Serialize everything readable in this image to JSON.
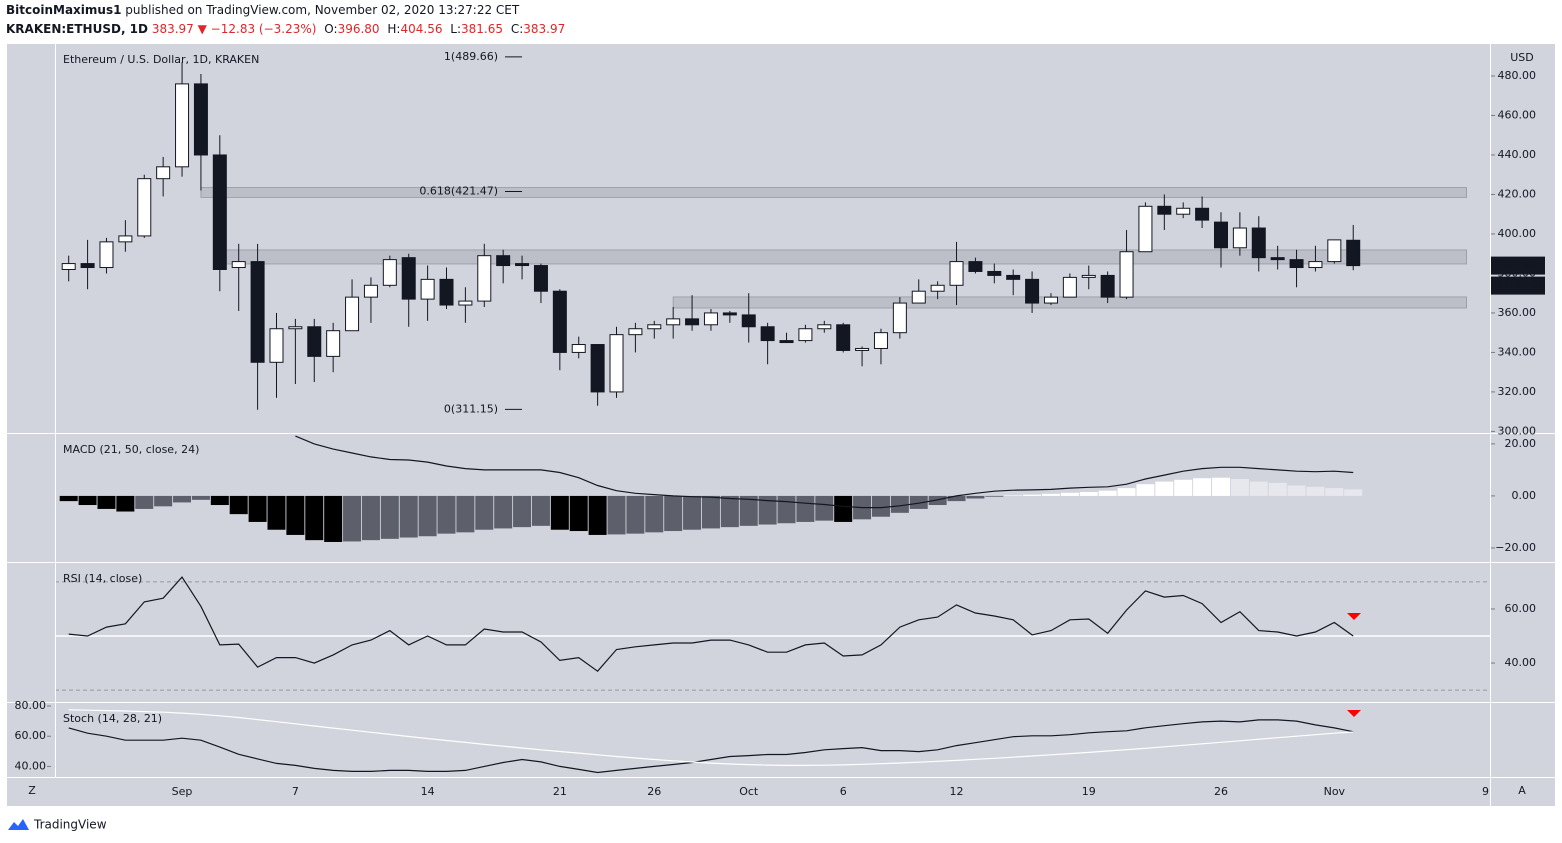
{
  "header": {
    "author": "BitcoinMaximus1",
    "published": "published on TradingView.com, November 02, 2020 13:27:22 CET",
    "symbol": "KRAKEN:ETHUSD, 1D",
    "last": "383.97",
    "change": "▼ −12.83 (−3.23%)",
    "ohlc": [
      {
        "key": "O:",
        "value": "396.80"
      },
      {
        "key": "H:",
        "value": "404.56"
      },
      {
        "key": "L:",
        "value": "381.65"
      },
      {
        "key": "C:",
        "value": "383.97"
      }
    ]
  },
  "footer": {
    "brand": "TradingView",
    "left_button": "Z",
    "right_button": "A"
  },
  "chart_data": [
    {
      "type": "candlestick",
      "title": "Ethereum / U.S. Dollar, 1D, KRAKEN",
      "currency": "USD",
      "categories": [
        null,
        null,
        null,
        null,
        null,
        null,
        "Sep",
        null,
        null,
        null,
        null,
        null,
        "7",
        null,
        null,
        null,
        null,
        null,
        null,
        "14",
        null,
        null,
        null,
        null,
        null,
        null,
        "21",
        null,
        null,
        null,
        null,
        "26",
        null,
        null,
        null,
        null,
        "Oct",
        null,
        null,
        null,
        null,
        "6",
        null,
        null,
        null,
        null,
        null,
        "12",
        null,
        null,
        null,
        null,
        null,
        null,
        "19",
        null,
        null,
        null,
        null,
        null,
        null,
        "26",
        null,
        null,
        null,
        null,
        null,
        "Nov",
        null,
        null,
        null,
        null,
        null,
        null,
        null,
        "9"
      ],
      "open": [
        382,
        385,
        383,
        396,
        399,
        428,
        434,
        476,
        440,
        383,
        386,
        335,
        352,
        353,
        338,
        351,
        368,
        374,
        388,
        367,
        377,
        364,
        366,
        389,
        385,
        384,
        371,
        340,
        344,
        320,
        349,
        352,
        354,
        357,
        354,
        360,
        359,
        353,
        346,
        346,
        352,
        354,
        341,
        342,
        350,
        365,
        371,
        374,
        386,
        381,
        379,
        377,
        365,
        368,
        378,
        379,
        368,
        391,
        414,
        410,
        413,
        406,
        393,
        403,
        388,
        387,
        383,
        386,
        396.8,
        null,
        null,
        null,
        null,
        null,
        null,
        null
      ],
      "high": [
        389,
        397,
        398,
        407,
        430,
        439,
        487,
        481,
        450,
        395,
        395,
        360,
        357,
        357,
        355,
        377,
        378,
        389,
        390,
        384,
        383,
        373,
        395,
        392,
        389,
        385,
        372,
        348,
        344,
        353,
        355,
        356,
        363,
        369,
        362,
        361,
        370,
        355,
        350,
        354,
        356,
        355,
        343,
        352,
        368,
        377,
        376,
        396,
        388,
        385,
        382,
        381,
        370,
        380,
        384,
        381,
        402,
        416,
        420,
        416,
        419,
        411,
        411,
        409,
        394,
        392,
        394,
        397,
        404.56,
        null,
        null,
        null,
        null,
        null,
        null,
        null
      ],
      "low": [
        376,
        372,
        380,
        391,
        398,
        419,
        429,
        422,
        371,
        361,
        311,
        317,
        324,
        325,
        330,
        351,
        355,
        373,
        353,
        356,
        362,
        355,
        363,
        375,
        377,
        365,
        331,
        337,
        313,
        317,
        340,
        347,
        347,
        351,
        351,
        355,
        345,
        334,
        345,
        345,
        350,
        340,
        333,
        334,
        347,
        365,
        367,
        364,
        380,
        375,
        369,
        360,
        364,
        368,
        372,
        365,
        367,
        391,
        402,
        408,
        403,
        383,
        389,
        381,
        382,
        373,
        381,
        385,
        381.65,
        null,
        null,
        null,
        null,
        null,
        null,
        null
      ],
      "close": [
        385,
        383,
        396,
        399,
        428,
        434,
        476,
        440,
        382,
        386,
        335,
        352,
        353,
        338,
        351,
        368,
        374,
        387,
        367,
        377,
        364,
        366,
        389,
        384,
        384,
        371,
        340,
        344,
        320,
        349,
        352,
        354,
        357,
        354,
        360,
        359,
        353,
        346,
        345,
        352,
        354,
        341,
        342,
        350,
        365,
        371,
        374,
        386,
        381,
        379,
        377,
        365,
        368,
        378,
        379,
        368,
        391,
        414,
        410,
        413,
        407,
        393,
        403,
        388,
        387,
        383,
        386,
        397,
        383.97,
        null,
        null,
        null,
        null,
        null,
        null,
        null
      ],
      "up_color": "#ffffff",
      "down_color": "#131722",
      "last_price": 383.97,
      "countdown": "11:32:39",
      "fib_levels": [
        {
          "value": 489.66,
          "label": "1(489.66)"
        },
        {
          "value": 421.47,
          "label": "0.618(421.47)"
        },
        {
          "value": 311.15,
          "label": "0(311.15)"
        }
      ],
      "zones": [
        {
          "low": 418.5,
          "high": 423.5,
          "start": 7,
          "end": 74
        },
        {
          "low": 384.8,
          "high": 391.9,
          "start": 8,
          "end": 74
        },
        {
          "low": 362.5,
          "high": 368.1,
          "start": 32,
          "end": 74
        }
      ],
      "ylim": [
        299.7,
        496.2
      ],
      "yticks": [
        {
          "value": 300,
          "label": "300.00"
        },
        {
          "value": 320,
          "label": "320.00"
        },
        {
          "value": 340,
          "label": "340.00"
        },
        {
          "value": 360,
          "label": "360.00"
        },
        {
          "value": 380,
          "label": "380.00"
        },
        {
          "value": 400,
          "label": "400.00"
        },
        {
          "value": 420,
          "label": "420.00"
        },
        {
          "value": 440,
          "label": "440.00"
        },
        {
          "value": 460,
          "label": "460.00"
        },
        {
          "value": 480,
          "label": "480.00"
        }
      ]
    },
    {
      "type": "macd",
      "title": "MACD (21, 50, close, 24)",
      "histogram": [
        -2,
        -3.5,
        -5,
        -6,
        -5,
        -4,
        -2.5,
        -1.5,
        -3.5,
        -7,
        -10,
        -13,
        -15,
        -17,
        -17.7,
        -17.5,
        -17,
        -16.5,
        -16,
        -15.5,
        -14.5,
        -14,
        -13,
        -12.5,
        -12,
        -11.5,
        -13,
        -13.5,
        -15,
        -14.8,
        -14.5,
        -14,
        -13.5,
        -13,
        -12.5,
        -12,
        -11.5,
        -11,
        -10.5,
        -10,
        -9.5,
        -10,
        -9,
        -8,
        -6.5,
        -5,
        -3.5,
        -2,
        -1,
        -0.3,
        0.2,
        0.5,
        0.8,
        1.2,
        1.5,
        2,
        3,
        4.5,
        5.5,
        6.2,
        6.8,
        7,
        6.5,
        5.5,
        5,
        4,
        3.5,
        3,
        2.5,
        null,
        null,
        null,
        null,
        null,
        null,
        null
      ],
      "line": [
        null,
        null,
        null,
        null,
        null,
        null,
        null,
        null,
        null,
        null,
        null,
        null,
        23,
        20,
        18,
        16.5,
        15,
        14,
        13.8,
        13,
        11.5,
        10.5,
        10,
        10,
        10,
        10,
        9,
        7,
        4,
        2,
        1,
        0.5,
        0,
        -0.3,
        -0.5,
        -1,
        -1.3,
        -1.8,
        -2.2,
        -2.8,
        -3.3,
        -4,
        -4.5,
        -4.5,
        -3.8,
        -2.8,
        -1.5,
        0,
        1,
        1.8,
        2.2,
        2.3,
        2.5,
        3,
        3.3,
        3.5,
        4.5,
        6.5,
        8,
        9.5,
        10.5,
        11,
        11,
        10.5,
        10,
        9.5,
        9.3,
        9.5,
        9,
        null,
        null,
        null,
        null,
        null,
        null,
        null
      ],
      "line_color": "#131722",
      "hist_colors": {
        "positive_rising": "#ffffff",
        "positive_falling": "#e6e8ee",
        "negative_falling": "#000000",
        "negative_rising": "#5d606b"
      },
      "ylim": [
        -25.4,
        23.8
      ],
      "yticks": [
        {
          "value": 20,
          "label": "20.00"
        },
        {
          "value": 0,
          "label": "0.00"
        },
        {
          "value": -20,
          "label": "−20.00"
        }
      ]
    },
    {
      "type": "line",
      "title": "RSI (14, close)",
      "series": [
        {
          "color": "#131722",
          "values": [
            50.7,
            50,
            53.3,
            54.5,
            62.6,
            64,
            71.8,
            61,
            46.7,
            47,
            38.5,
            42,
            42,
            40,
            43,
            46.7,
            48.5,
            52,
            46.7,
            50,
            46.7,
            46.7,
            52.6,
            51.5,
            51.5,
            47.8,
            41,
            42,
            37,
            45,
            46,
            46.7,
            47.4,
            47.4,
            48.5,
            48.5,
            46.7,
            44,
            44,
            46.7,
            47.4,
            42.6,
            43,
            46.7,
            53.3,
            56,
            57,
            61.5,
            58.5,
            57.4,
            56,
            50.4,
            52,
            56,
            56.3,
            51,
            59.6,
            66.7,
            64.4,
            65,
            62,
            55,
            59,
            52,
            51.5,
            50,
            51.5,
            55,
            50,
            null,
            null,
            null,
            null,
            null,
            null,
            null
          ]
        }
      ],
      "levels": [
        70,
        50,
        30
      ],
      "ylim": [
        25.6,
        77
      ],
      "yticks": [
        {
          "value": 60,
          "label": "60.00"
        },
        {
          "value": 40,
          "label": "40.00"
        }
      ]
    },
    {
      "type": "line",
      "title": "Stoch (14, 28, 21)",
      "series": [
        {
          "color": "#131722",
          "values": [
            65.5,
            62,
            60,
            57.4,
            57.4,
            57.4,
            58.7,
            57.4,
            52.8,
            48,
            45,
            42,
            40.7,
            38.7,
            37.4,
            36.7,
            36.7,
            37.4,
            37.4,
            36.7,
            36.7,
            37.4,
            40,
            42.6,
            44.6,
            43,
            40,
            38,
            36,
            37.4,
            38.7,
            40,
            41.3,
            42.6,
            44.6,
            46.6,
            47.2,
            47.9,
            47.9,
            49.2,
            51,
            51.8,
            52.5,
            50.5,
            50.5,
            49.8,
            51,
            53.8,
            55.7,
            57.7,
            59.7,
            60.3,
            60.3,
            61,
            62.3,
            63,
            63.6,
            65.6,
            67,
            68.3,
            69.5,
            70,
            69.5,
            70.8,
            70.8,
            70,
            67.5,
            65.5,
            63,
            null,
            null,
            null,
            null,
            null,
            null,
            null
          ]
        },
        {
          "color": "#ffffff",
          "values": [
            77.4,
            77.2,
            77,
            76.7,
            76.3,
            75.9,
            75.3,
            74.5,
            73.5,
            72.4,
            71,
            69.6,
            68.2,
            66.8,
            65.4,
            64,
            62.6,
            61.2,
            59.8,
            58.5,
            57.2,
            55.9,
            54.6,
            53.4,
            52.2,
            51,
            49.9,
            48.8,
            47.7,
            46.6,
            45.6,
            44.6,
            43.7,
            42.9,
            42.2,
            41.6,
            41.2,
            40.9,
            40.7,
            40.7,
            40.8,
            41,
            41.4,
            41.8,
            42.3,
            42.8,
            43.4,
            44,
            44.7,
            45.4,
            46.1,
            46.9,
            47.7,
            48.5,
            49.3,
            50.2,
            51.1,
            52,
            53,
            54,
            55,
            56,
            57,
            58,
            59,
            60,
            61,
            62,
            62.8,
            null,
            null,
            null,
            null,
            null,
            null,
            null
          ]
        }
      ],
      "ylim": [
        33,
        82
      ],
      "yticks": [
        {
          "value": 80,
          "label": "80.00"
        },
        {
          "value": 60,
          "label": "60.00"
        },
        {
          "value": 40,
          "label": "40.00"
        }
      ]
    }
  ]
}
